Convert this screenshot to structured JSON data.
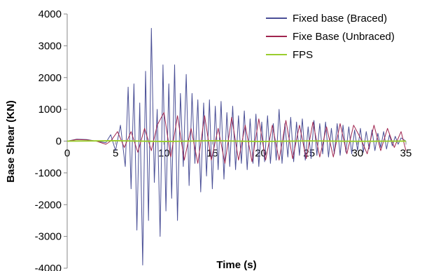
{
  "chart_data": {
    "type": "line",
    "xlabel": "Time (s)",
    "ylabel": "Base Shear (KN)",
    "xlim": [
      0,
      35
    ],
    "ylim": [
      -4000,
      4000
    ],
    "xticks": [
      0,
      5,
      10,
      15,
      20,
      25,
      30,
      35
    ],
    "yticks": [
      -4000,
      -3000,
      -2000,
      -1000,
      0,
      1000,
      2000,
      3000,
      4000
    ],
    "grid": false,
    "legend_position": "top-right",
    "series": [
      {
        "name": "Fixed base (Braced)",
        "color": "#4a4f96",
        "x": [
          0,
          1,
          2,
          3,
          4,
          4.5,
          5,
          5.5,
          6,
          6.3,
          6.6,
          6.9,
          7.2,
          7.5,
          7.8,
          8.1,
          8.4,
          8.7,
          9.0,
          9.3,
          9.6,
          9.9,
          10.2,
          10.5,
          10.8,
          11.1,
          11.4,
          11.7,
          12.0,
          12.3,
          12.6,
          12.9,
          13.2,
          13.5,
          13.8,
          14.1,
          14.4,
          14.7,
          15.0,
          15.3,
          15.6,
          15.9,
          16.2,
          16.5,
          16.8,
          17.1,
          17.4,
          17.7,
          18.0,
          18.3,
          18.6,
          18.9,
          19.2,
          19.5,
          19.8,
          20.1,
          20.4,
          20.7,
          21.0,
          21.3,
          21.6,
          21.9,
          22.2,
          22.5,
          22.8,
          23.1,
          23.4,
          23.7,
          24.0,
          24.3,
          24.6,
          24.9,
          25.2,
          25.5,
          25.8,
          26.1,
          26.4,
          26.7,
          27.0,
          27.3,
          27.6,
          27.9,
          28.2,
          28.5,
          28.8,
          29.1,
          29.4,
          29.7,
          30.0,
          30.3,
          30.6,
          30.9,
          31.2,
          31.5,
          31.8,
          32.1,
          32.4,
          32.7,
          33.0,
          33.3,
          33.6,
          33.9,
          34.2,
          34.5,
          35
        ],
        "values": [
          0,
          60,
          50,
          0,
          -50,
          200,
          -300,
          500,
          -800,
          1700,
          -1500,
          1800,
          -2800,
          1200,
          -3900,
          2200,
          -2500,
          3550,
          -1300,
          1000,
          -3000,
          2400,
          -2200,
          1800,
          -1800,
          2400,
          -2500,
          1500,
          -800,
          2100,
          -1400,
          1500,
          -700,
          1300,
          -1600,
          1200,
          -1100,
          1300,
          -1500,
          1100,
          -900,
          1250,
          -1200,
          900,
          -800,
          1100,
          -900,
          800,
          -700,
          950,
          -900,
          700,
          -700,
          850,
          -800,
          600,
          -650,
          800,
          -700,
          550,
          -600,
          1000,
          -700,
          550,
          -500,
          750,
          -650,
          600,
          -450,
          700,
          -600,
          450,
          -550,
          650,
          -450,
          550,
          -400,
          600,
          -500,
          400,
          -400,
          550,
          -450,
          500,
          -350,
          450,
          -400,
          350,
          -300,
          400,
          -350,
          300,
          -250,
          350,
          -300,
          250,
          -200,
          300,
          -250,
          200,
          -150,
          150,
          -100,
          100,
          0
        ]
      },
      {
        "name": "Fixe Base (Unbraced)",
        "color": "#a0244e",
        "x": [
          0,
          1,
          2,
          3,
          4,
          4.5,
          5.2,
          5.9,
          6.6,
          7.3,
          8.0,
          8.7,
          9.3,
          10.0,
          10.7,
          11.4,
          12.1,
          12.8,
          13.5,
          14.2,
          14.9,
          15.6,
          16.3,
          17.0,
          17.7,
          18.4,
          19.1,
          19.8,
          20.5,
          21.2,
          21.9,
          22.6,
          23.3,
          24.0,
          24.7,
          25.4,
          26.1,
          26.8,
          27.5,
          28.2,
          28.9,
          29.6,
          30.3,
          31.0,
          31.7,
          32.4,
          33.1,
          33.8,
          34.5,
          35
        ],
        "values": [
          0,
          50,
          40,
          0,
          -100,
          0,
          300,
          -200,
          300,
          -350,
          400,
          -300,
          500,
          900,
          -500,
          800,
          -600,
          400,
          -700,
          800,
          -600,
          400,
          -700,
          750,
          -600,
          500,
          -650,
          700,
          -600,
          500,
          -600,
          650,
          -550,
          500,
          -550,
          600,
          -500,
          450,
          -500,
          550,
          -400,
          500,
          100,
          -400,
          500,
          -300,
          400,
          -200,
          300,
          -300
        ]
      },
      {
        "name": "FPS",
        "color": "#9acd2e",
        "x": [
          0,
          5,
          10,
          15,
          20,
          25,
          30,
          35
        ],
        "values": [
          0,
          10,
          -10,
          10,
          -10,
          5,
          -5,
          0
        ]
      }
    ]
  }
}
